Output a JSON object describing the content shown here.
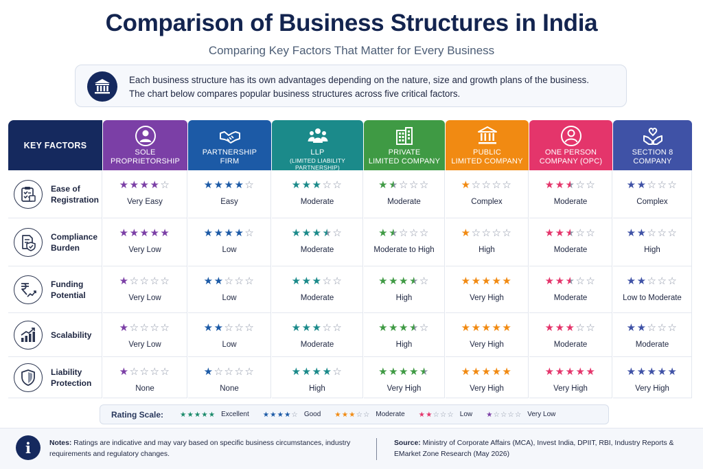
{
  "title": "Comparison of Business Structures in India",
  "subtitle": "Comparing Key Factors That Matter for Every Business",
  "intro": {
    "icon": "bank-building-icon",
    "line1": "Each business structure has its own advantages depending on the nature, size and growth plans of the business.",
    "line2": "The chart below compares popular business structures across five critical factors."
  },
  "chart_data": {
    "type": "table",
    "row_header": "KEY FACTORS",
    "max_rating": 5,
    "factors": [
      {
        "line1": "Ease of",
        "line2": "Registration",
        "icon": "registration-clipboard-icon"
      },
      {
        "line1": "Compliance",
        "line2": "Burden",
        "icon": "compliance-document-shield-icon"
      },
      {
        "line1": "Funding",
        "line2": "Potential",
        "icon": "rupee-growth-icon"
      },
      {
        "line1": "Scalability",
        "line2": "",
        "icon": "bar-chart-growth-icon"
      },
      {
        "line1": "Liability",
        "line2": "Protection",
        "icon": "shield-icon"
      }
    ],
    "structures": [
      {
        "line1": "SOLE",
        "line2": "PROPRIETORSHIP",
        "sub": "",
        "color": "#7b3fa6",
        "icon": "person-icon",
        "ratings": [
          4,
          5,
          1,
          1,
          1
        ],
        "labels": [
          "Very Easy",
          "Very Low",
          "Very Low",
          "Very Low",
          "None"
        ]
      },
      {
        "line1": "PARTNERSHIP",
        "line2": "FIRM",
        "sub": "",
        "color": "#1c5aa6",
        "icon": "handshake-icon",
        "ratings": [
          4,
          4,
          2,
          2,
          1
        ],
        "labels": [
          "Easy",
          "Low",
          "Low",
          "Low",
          "None"
        ]
      },
      {
        "line1": "LLP",
        "line2": "",
        "sub": "(LIMITED LIABILITY PARTNERSHIP)",
        "color": "#1b8a8a",
        "icon": "group-icon",
        "ratings": [
          3,
          3.5,
          3,
          3,
          4
        ],
        "labels": [
          "Moderate",
          "Moderate",
          "Moderate",
          "Moderate",
          "High"
        ]
      },
      {
        "line1": "PRIVATE",
        "line2": "LIMITED COMPANY",
        "sub": "",
        "color": "#3f9a44",
        "icon": "office-building-icon",
        "ratings": [
          1.5,
          1.5,
          3.5,
          3.5,
          4.5
        ],
        "labels": [
          "Moderate",
          "Moderate to High",
          "High",
          "High",
          "Very High"
        ]
      },
      {
        "line1": "PUBLIC",
        "line2": "LIMITED COMPANY",
        "sub": "",
        "color": "#f18a12",
        "icon": "institution-icon",
        "ratings": [
          1,
          1,
          5,
          5,
          5
        ],
        "labels": [
          "Complex",
          "High",
          "Very High",
          "Very High",
          "Very High"
        ]
      },
      {
        "line1": "ONE PERSON",
        "line2": "COMPANY (OPC)",
        "sub": "",
        "color": "#e4356b",
        "icon": "person-circle-icon",
        "ratings": [
          2.5,
          2.5,
          2.5,
          3,
          5
        ],
        "labels": [
          "Moderate",
          "Moderate",
          "Moderate",
          "Moderate",
          "Very High"
        ]
      },
      {
        "line1": "SECTION 8",
        "line2": "COMPANY",
        "sub": "",
        "color": "#3f52a6",
        "icon": "heart-hands-icon",
        "ratings": [
          2,
          2,
          2,
          2,
          5
        ],
        "labels": [
          "Complex",
          "High",
          "Low to Moderate",
          "Moderate",
          "Very High"
        ]
      }
    ]
  },
  "rating_scale": {
    "title": "Rating Scale:",
    "items": [
      {
        "stars": 5,
        "label": "Excellent",
        "color": "#1b8a6a"
      },
      {
        "stars": 4,
        "label": "Good",
        "color": "#1c5aa6"
      },
      {
        "stars": 3,
        "label": "Moderate",
        "color": "#f18a12"
      },
      {
        "stars": 2,
        "label": "Low",
        "color": "#e4356b"
      },
      {
        "stars": 1,
        "label": "Very Low",
        "color": "#7b3fa6"
      }
    ]
  },
  "footer": {
    "notes_label": "Notes:",
    "notes_text": " Ratings are indicative and may vary based on specific business circumstances, industry requirements and regulatory changes.",
    "source_label": "Source:",
    "source_text": " Ministry of Corporate Affairs (MCA), Invest India, DPIIT, RBI, Industry Reports & EMarket Zone Research (May 2026)"
  },
  "colors": {
    "navy": "#13244f",
    "key_header": "#15295e"
  }
}
